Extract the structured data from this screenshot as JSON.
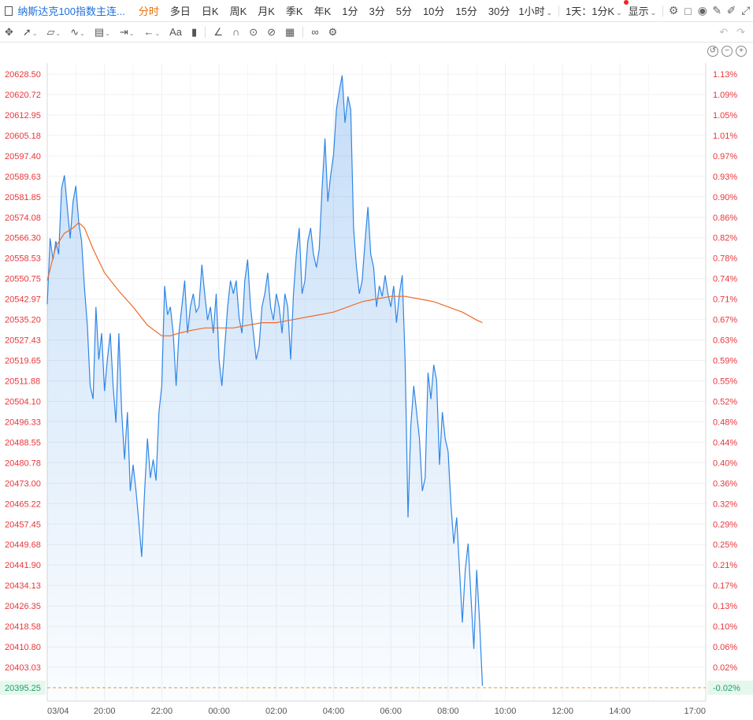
{
  "toolbar": {
    "title": "纳斯达克100指数主连...",
    "periods": [
      "分时",
      "多日",
      "日K",
      "周K",
      "月K",
      "季K",
      "年K",
      "1分",
      "3分",
      "5分",
      "10分",
      "15分",
      "30分"
    ],
    "active_period": "分时",
    "hour_dropdown": "1小时",
    "range_dropdown": "1天：1分K",
    "display_dropdown": "显示",
    "icons": [
      "settings-icon",
      "checkbox-icon",
      "camera-icon",
      "edit-icon",
      "pen-icon",
      "fullscreen-icon",
      "grid-icon"
    ]
  },
  "drawing_tools": {
    "text_tool": "Aa",
    "icons": [
      "crosshair-icon",
      "line-icon",
      "channel-icon",
      "wave-icon",
      "fib-icon",
      "measure-icon",
      "arrow-left-icon",
      "text-icon",
      "comment-icon",
      "ruler-icon",
      "magnet-icon",
      "eye-icon",
      "hide-icon",
      "trash-icon",
      "link-icon",
      "gear-icon",
      "undo-icon",
      "redo-icon"
    ]
  },
  "chart_data": {
    "type": "line",
    "y_left_ticks": [
      "20628.50",
      "20620.72",
      "20612.95",
      "20605.18",
      "20597.40",
      "20589.63",
      "20581.85",
      "20574.08",
      "20566.30",
      "20558.53",
      "20550.75",
      "20542.97",
      "20535.20",
      "20527.43",
      "20519.65",
      "20511.88",
      "20504.10",
      "20496.33",
      "20488.55",
      "20480.78",
      "20473.00",
      "20465.22",
      "20457.45",
      "20449.68",
      "20441.90",
      "20434.13",
      "20426.35",
      "20418.58",
      "20410.80",
      "20403.03"
    ],
    "y_right_ticks": [
      "1.13%",
      "1.09%",
      "1.05%",
      "1.01%",
      "0.97%",
      "0.93%",
      "0.90%",
      "0.86%",
      "0.82%",
      "0.78%",
      "0.74%",
      "0.71%",
      "0.67%",
      "0.63%",
      "0.59%",
      "0.55%",
      "0.52%",
      "0.48%",
      "0.44%",
      "0.40%",
      "0.36%",
      "0.32%",
      "0.29%",
      "0.25%",
      "0.21%",
      "0.17%",
      "0.13%",
      "0.10%",
      "0.06%",
      "0.02%"
    ],
    "ylim": [
      20395.25,
      20628.5
    ],
    "current_price": "20395.25",
    "current_pct": "-0.02%",
    "x_labels": [
      "03/04",
      "20:00",
      "22:00",
      "00:00",
      "02:00",
      "04:00",
      "06:00",
      "08:00",
      "10:00",
      "12:00",
      "14:00",
      "17:00"
    ],
    "x_range_hours": [
      18,
      41
    ],
    "series": [
      {
        "color": "#2f86e6",
        "points": [
          [
            18.0,
            20541
          ],
          [
            18.1,
            20566
          ],
          [
            18.2,
            20558
          ],
          [
            18.3,
            20565
          ],
          [
            18.4,
            20560
          ],
          [
            18.5,
            20585
          ],
          [
            18.6,
            20590
          ],
          [
            18.7,
            20578
          ],
          [
            18.8,
            20566
          ],
          [
            18.9,
            20580
          ],
          [
            19.0,
            20586
          ],
          [
            19.1,
            20572
          ],
          [
            19.2,
            20565
          ],
          [
            19.3,
            20547
          ],
          [
            19.4,
            20533
          ],
          [
            19.5,
            20510
          ],
          [
            19.6,
            20505
          ],
          [
            19.7,
            20540
          ],
          [
            19.8,
            20520
          ],
          [
            19.9,
            20530
          ],
          [
            20.0,
            20508
          ],
          [
            20.1,
            20520
          ],
          [
            20.2,
            20530
          ],
          [
            20.3,
            20510
          ],
          [
            20.4,
            20496
          ],
          [
            20.5,
            20530
          ],
          [
            20.6,
            20500
          ],
          [
            20.7,
            20482
          ],
          [
            20.8,
            20500
          ],
          [
            20.9,
            20470
          ],
          [
            21.0,
            20480
          ],
          [
            21.1,
            20470
          ],
          [
            21.2,
            20458
          ],
          [
            21.3,
            20445
          ],
          [
            21.4,
            20470
          ],
          [
            21.5,
            20490
          ],
          [
            21.6,
            20475
          ],
          [
            21.7,
            20482
          ],
          [
            21.8,
            20474
          ],
          [
            21.9,
            20500
          ],
          [
            22.0,
            20510
          ],
          [
            22.1,
            20548
          ],
          [
            22.2,
            20537
          ],
          [
            22.3,
            20540
          ],
          [
            22.4,
            20530
          ],
          [
            22.5,
            20510
          ],
          [
            22.6,
            20530
          ],
          [
            22.7,
            20540
          ],
          [
            22.8,
            20550
          ],
          [
            22.9,
            20530
          ],
          [
            23.0,
            20540
          ],
          [
            23.1,
            20545
          ],
          [
            23.2,
            20538
          ],
          [
            23.3,
            20540
          ],
          [
            23.4,
            20556
          ],
          [
            23.5,
            20545
          ],
          [
            23.6,
            20535
          ],
          [
            23.7,
            20540
          ],
          [
            23.8,
            20530
          ],
          [
            23.9,
            20545
          ],
          [
            24.0,
            20520
          ],
          [
            24.1,
            20510
          ],
          [
            24.2,
            20525
          ],
          [
            24.3,
            20540
          ],
          [
            24.4,
            20550
          ],
          [
            24.5,
            20545
          ],
          [
            24.6,
            20550
          ],
          [
            24.7,
            20536
          ],
          [
            24.8,
            20530
          ],
          [
            24.9,
            20550
          ],
          [
            25.0,
            20558
          ],
          [
            25.1,
            20540
          ],
          [
            25.2,
            20530
          ],
          [
            25.3,
            20520
          ],
          [
            25.4,
            20525
          ],
          [
            25.5,
            20540
          ],
          [
            25.6,
            20545
          ],
          [
            25.7,
            20553
          ],
          [
            25.8,
            20540
          ],
          [
            25.9,
            20535
          ],
          [
            26.0,
            20545
          ],
          [
            26.1,
            20540
          ],
          [
            26.2,
            20530
          ],
          [
            26.3,
            20545
          ],
          [
            26.4,
            20540
          ],
          [
            26.5,
            20520
          ],
          [
            26.6,
            20545
          ],
          [
            26.7,
            20560
          ],
          [
            26.8,
            20570
          ],
          [
            26.9,
            20545
          ],
          [
            27.0,
            20550
          ],
          [
            27.1,
            20565
          ],
          [
            27.2,
            20570
          ],
          [
            27.3,
            20560
          ],
          [
            27.4,
            20555
          ],
          [
            27.5,
            20562
          ],
          [
            27.6,
            20585
          ],
          [
            27.7,
            20604
          ],
          [
            27.8,
            20580
          ],
          [
            27.9,
            20590
          ],
          [
            28.0,
            20598
          ],
          [
            28.1,
            20615
          ],
          [
            28.2,
            20622
          ],
          [
            28.3,
            20628
          ],
          [
            28.4,
            20610
          ],
          [
            28.5,
            20620
          ],
          [
            28.6,
            20615
          ],
          [
            28.7,
            20570
          ],
          [
            28.8,
            20555
          ],
          [
            28.9,
            20545
          ],
          [
            29.0,
            20550
          ],
          [
            29.1,
            20565
          ],
          [
            29.2,
            20578
          ],
          [
            29.3,
            20560
          ],
          [
            29.4,
            20555
          ],
          [
            29.5,
            20540
          ],
          [
            29.6,
            20548
          ],
          [
            29.7,
            20544
          ],
          [
            29.8,
            20552
          ],
          [
            29.9,
            20545
          ],
          [
            30.0,
            20540
          ],
          [
            30.1,
            20548
          ],
          [
            30.2,
            20534
          ],
          [
            30.3,
            20545
          ],
          [
            30.4,
            20552
          ],
          [
            30.5,
            20520
          ],
          [
            30.6,
            20460
          ],
          [
            30.7,
            20495
          ],
          [
            30.8,
            20510
          ],
          [
            30.9,
            20500
          ],
          [
            31.0,
            20490
          ],
          [
            31.1,
            20470
          ],
          [
            31.2,
            20475
          ],
          [
            31.3,
            20515
          ],
          [
            31.4,
            20505
          ],
          [
            31.5,
            20518
          ],
          [
            31.6,
            20512
          ],
          [
            31.7,
            20480
          ],
          [
            31.8,
            20500
          ],
          [
            31.9,
            20490
          ],
          [
            32.0,
            20485
          ],
          [
            32.1,
            20465
          ],
          [
            32.2,
            20450
          ],
          [
            32.3,
            20460
          ],
          [
            32.4,
            20440
          ],
          [
            32.5,
            20420
          ],
          [
            32.6,
            20440
          ],
          [
            32.7,
            20450
          ],
          [
            32.8,
            20430
          ],
          [
            32.9,
            20410
          ],
          [
            33.0,
            20440
          ],
          [
            33.1,
            20420
          ],
          [
            33.2,
            20396
          ]
        ]
      },
      {
        "color": "#ef6c2a",
        "points": [
          [
            18.0,
            20550
          ],
          [
            18.3,
            20563
          ],
          [
            18.6,
            20568
          ],
          [
            18.9,
            20570
          ],
          [
            19.1,
            20572
          ],
          [
            19.3,
            20570
          ],
          [
            19.6,
            20562
          ],
          [
            20.0,
            20553
          ],
          [
            20.5,
            20546
          ],
          [
            21.0,
            20540
          ],
          [
            21.5,
            20533
          ],
          [
            22.0,
            20529
          ],
          [
            22.3,
            20529
          ],
          [
            22.6,
            20530
          ],
          [
            23.0,
            20531
          ],
          [
            23.5,
            20532
          ],
          [
            24.0,
            20532
          ],
          [
            24.5,
            20532
          ],
          [
            25.0,
            20533
          ],
          [
            25.5,
            20534
          ],
          [
            26.0,
            20534
          ],
          [
            26.5,
            20535
          ],
          [
            27.0,
            20536
          ],
          [
            27.5,
            20537
          ],
          [
            28.0,
            20538
          ],
          [
            28.5,
            20540
          ],
          [
            29.0,
            20542
          ],
          [
            29.5,
            20543
          ],
          [
            30.0,
            20544
          ],
          [
            30.5,
            20544
          ],
          [
            31.0,
            20543
          ],
          [
            31.5,
            20542
          ],
          [
            32.0,
            20540
          ],
          [
            32.5,
            20538
          ],
          [
            33.0,
            20535
          ],
          [
            33.2,
            20534
          ]
        ]
      }
    ]
  }
}
